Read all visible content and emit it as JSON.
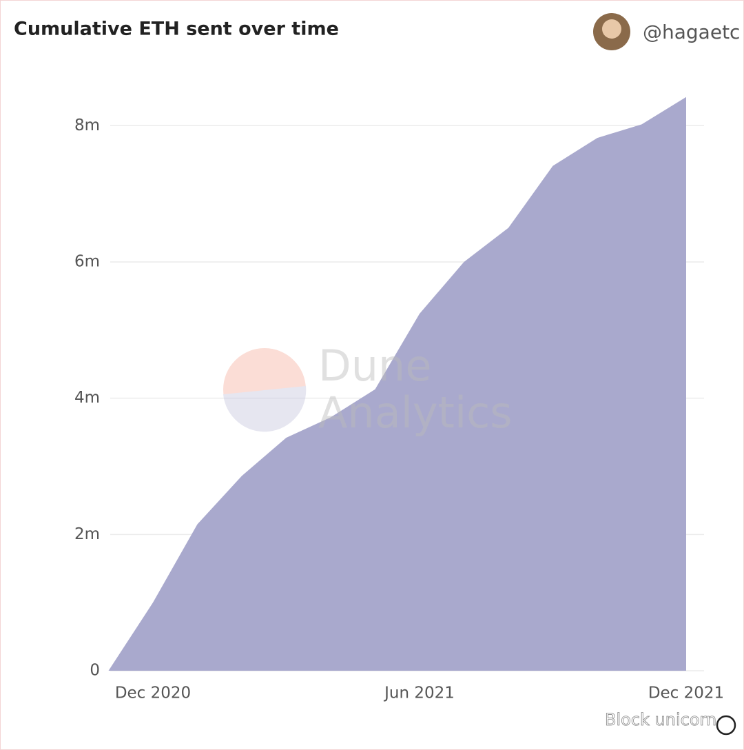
{
  "header": {
    "handle": "@hagaetc"
  },
  "watermarks": {
    "dune": [
      "Dune",
      "Analytics"
    ],
    "source": "Block unicorn"
  },
  "chart_data": {
    "type": "area",
    "title": "Cumulative ETH sent over time",
    "x": [
      "2020-11",
      "2020-12",
      "2021-01",
      "2021-02",
      "2021-03",
      "2021-04",
      "2021-05",
      "2021-06",
      "2021-07",
      "2021-08",
      "2021-09",
      "2021-10",
      "2021-11",
      "2021-12"
    ],
    "values": [
      0,
      1000000,
      2150000,
      2860000,
      3420000,
      3720000,
      4130000,
      5240000,
      6000000,
      6500000,
      7410000,
      7820000,
      8020000,
      8420000
    ],
    "color": "#a9a9cd",
    "xlim": [
      "2020-11",
      "2021-12"
    ],
    "xticks": [
      {
        "value": "2020-12",
        "label": "Dec 2020"
      },
      {
        "value": "2021-06",
        "label": "Jun 2021"
      },
      {
        "value": "2021-12",
        "label": "Dec 2021"
      }
    ],
    "ylim": [
      0,
      8600000
    ],
    "yticks": [
      0,
      {
        "value": 2000000,
        "label": "2m"
      },
      {
        "value": 4000000,
        "label": "4m"
      },
      {
        "value": 6000000,
        "label": "6m"
      },
      {
        "value": 8000000,
        "label": "8m"
      }
    ],
    "grid": true
  }
}
